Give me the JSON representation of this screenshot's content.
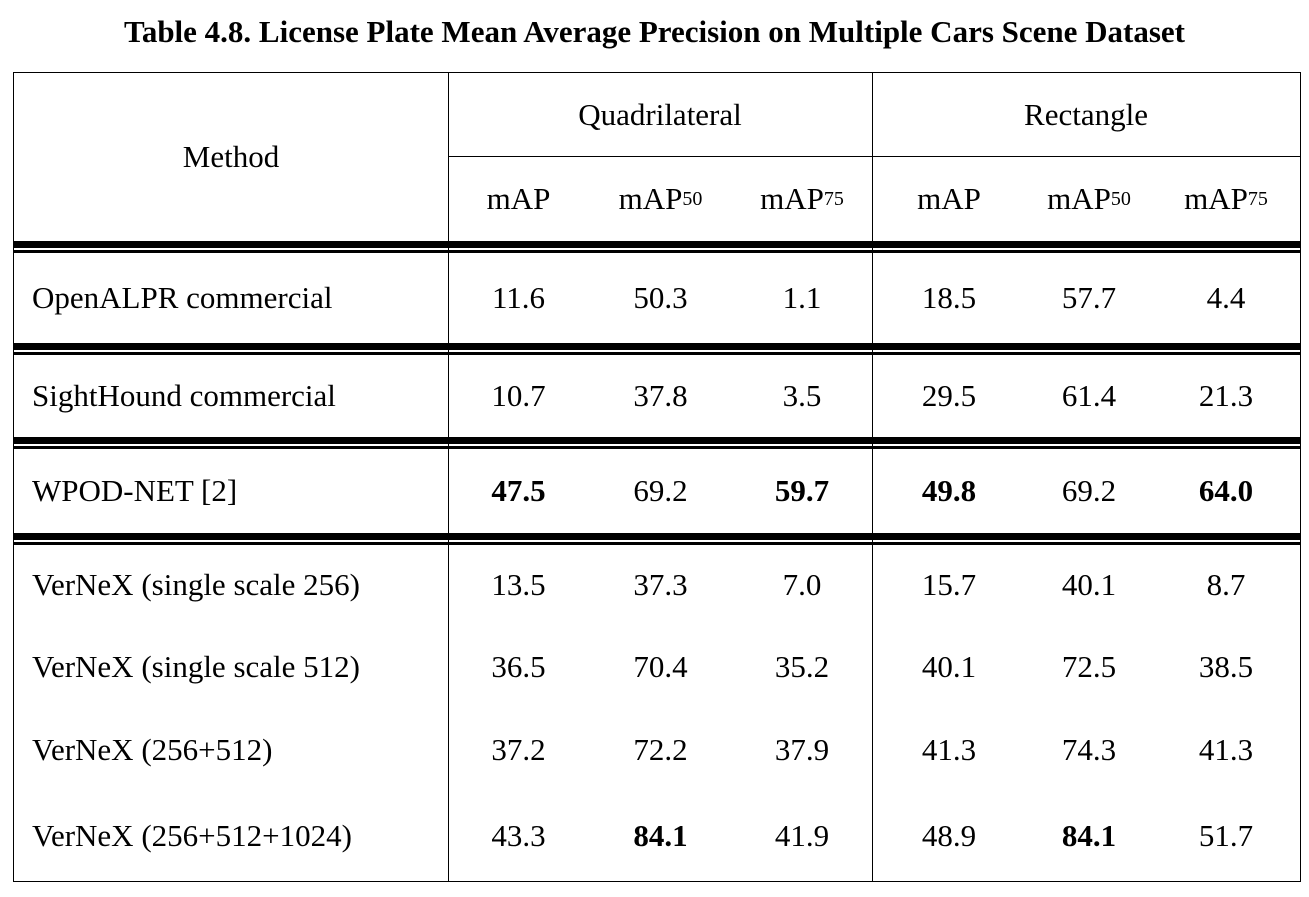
{
  "caption": "Table 4.8. License Plate Mean Average Precision on Multiple Cars Scene Dataset",
  "header": {
    "method": "Method",
    "groups": [
      "Quadrilateral",
      "Rectangle"
    ],
    "metrics": [
      {
        "base": "mAP",
        "sub": ""
      },
      {
        "base": "mAP",
        "sub": "50"
      },
      {
        "base": "mAP",
        "sub": "75"
      },
      {
        "base": "mAP",
        "sub": ""
      },
      {
        "base": "mAP",
        "sub": "50"
      },
      {
        "base": "mAP",
        "sub": "75"
      }
    ]
  },
  "rows": [
    {
      "method": "OpenALPR commercial",
      "values": [
        "11.6",
        "50.3",
        "1.1",
        "18.5",
        "57.7",
        "4.4"
      ],
      "bold": [
        false,
        false,
        false,
        false,
        false,
        false
      ]
    },
    {
      "method": "SightHound commercial",
      "values": [
        "10.7",
        "37.8",
        "3.5",
        "29.5",
        "61.4",
        "21.3"
      ],
      "bold": [
        false,
        false,
        false,
        false,
        false,
        false
      ]
    },
    {
      "method": "WPOD-NET [2]",
      "values": [
        "47.5",
        "69.2",
        "59.7",
        "49.8",
        "69.2",
        "64.0"
      ],
      "bold": [
        true,
        false,
        true,
        true,
        false,
        true
      ]
    },
    {
      "method": "VerNeX (single scale 256)",
      "values": [
        "13.5",
        "37.3",
        "7.0",
        "15.7",
        "40.1",
        "8.7"
      ],
      "bold": [
        false,
        false,
        false,
        false,
        false,
        false
      ]
    },
    {
      "method": "VerNeX (single scale 512)",
      "values": [
        "36.5",
        "70.4",
        "35.2",
        "40.1",
        "72.5",
        "38.5"
      ],
      "bold": [
        false,
        false,
        false,
        false,
        false,
        false
      ]
    },
    {
      "method": "VerNeX (256+512)",
      "values": [
        "37.2",
        "72.2",
        "37.9",
        "41.3",
        "74.3",
        "41.3"
      ],
      "bold": [
        false,
        false,
        false,
        false,
        false,
        false
      ]
    },
    {
      "method": "VerNeX (256+512+1024)",
      "values": [
        "43.3",
        "84.1",
        "41.9",
        "48.9",
        "84.1",
        "51.7"
      ],
      "bold": [
        false,
        true,
        false,
        false,
        true,
        false
      ]
    }
  ]
}
